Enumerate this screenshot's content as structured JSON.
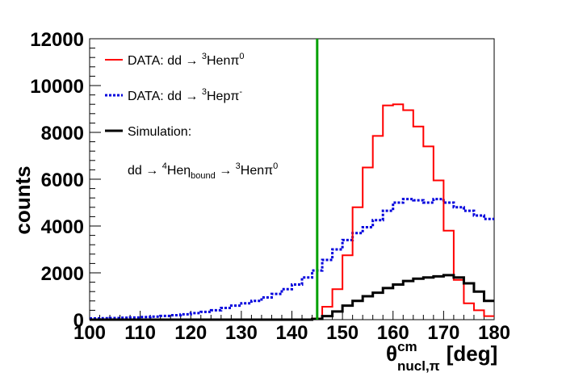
{
  "chart_data": {
    "type": "line",
    "title": "",
    "xlabel": "θ^cm_nucl,π [deg]",
    "xlabel_parts": {
      "symbol": "θ",
      "superscript": "cm",
      "subscript": "nucl,π",
      "unit": "[deg]"
    },
    "ylabel": "counts",
    "xlim": [
      100,
      180
    ],
    "ylim": [
      0,
      12000
    ],
    "x_ticks": [
      100,
      110,
      120,
      130,
      140,
      150,
      160,
      170,
      180
    ],
    "y_ticks": [
      0,
      2000,
      4000,
      6000,
      8000,
      10000,
      12000
    ],
    "vertical_line": {
      "x": 145,
      "color": "#00a000"
    },
    "bin_width": 2,
    "bin_edges_start": 100,
    "series": [
      {
        "name": "DATA: dd → 3Henπ0",
        "color": "#ff0000",
        "style": "solid",
        "values": [
          0,
          0,
          0,
          0,
          0,
          0,
          0,
          0,
          0,
          0,
          0,
          0,
          0,
          0,
          0,
          0,
          0,
          0,
          0,
          0,
          0,
          0,
          50,
          550,
          1300,
          2750,
          4800,
          6500,
          7850,
          9150,
          9200,
          8950,
          8250,
          7400,
          5950,
          3800,
          1700,
          700,
          400,
          150
        ]
      },
      {
        "name": "DATA: dd → 3Hepπ-",
        "color": "#0000dd",
        "style": "dotted",
        "values": [
          50,
          60,
          70,
          80,
          90,
          110,
          130,
          160,
          190,
          230,
          280,
          330,
          400,
          500,
          600,
          700,
          800,
          950,
          1100,
          1300,
          1500,
          1800,
          2100,
          2550,
          3000,
          3400,
          3700,
          3950,
          4250,
          4650,
          5000,
          5150,
          5100,
          5000,
          5150,
          5000,
          4800,
          4650,
          4450,
          4300
        ]
      },
      {
        "name": "Simulation: dd → 4Heη_bound → 3Henπ0",
        "color": "#000000",
        "style": "solid-thick",
        "values": [
          0,
          0,
          0,
          0,
          0,
          0,
          0,
          0,
          0,
          0,
          0,
          0,
          0,
          0,
          0,
          0,
          0,
          0,
          0,
          0,
          0,
          0,
          30,
          150,
          350,
          600,
          800,
          1000,
          1150,
          1350,
          1500,
          1650,
          1750,
          1800,
          1850,
          1900,
          1800,
          1550,
          1200,
          800
        ]
      }
    ],
    "legend": {
      "position": "top-left",
      "entries": [
        {
          "label": "DATA: dd → ",
          "sup_pre": "3",
          "mid": "Henπ",
          "sup_post": "0"
        },
        {
          "label": "DATA: dd → ",
          "sup_pre": "3",
          "mid": "Hepπ",
          "sup_post": "-"
        },
        {
          "label": "Simulation:"
        }
      ],
      "sim_detail": {
        "pre": "dd → ",
        "sup1": "4",
        "he": "Heη",
        "sub": "bound",
        "arrow": " → ",
        "sup2": "3",
        "post": "Henπ",
        "sup3": "0"
      }
    }
  }
}
